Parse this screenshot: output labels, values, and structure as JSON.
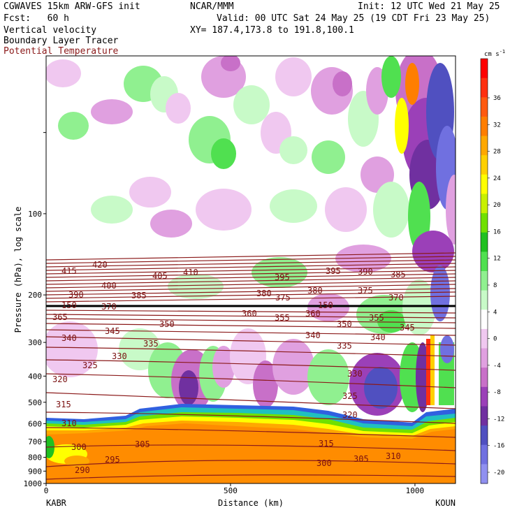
{
  "header": {
    "model": "CGWAVES 15km ARW-GFS init",
    "org": "NCAR/MMM",
    "init": "Init: 12 UTC Wed 21 May 25",
    "fcst": "Fcst:   60 h",
    "valid": "Valid: 00 UTC Sat 24 May 25 (19 CDT Fri 23 May 25)",
    "xy": "XY= 187.4,173.8 to 191.8,100.1",
    "fields": {
      "vv": "Vertical velocity",
      "blt": "Boundary Layer Tracer",
      "theta": "Potential Temperature"
    },
    "theta_color": "#8b1a1a"
  },
  "chart_data": {
    "type": "heatmap",
    "title": "Vertical velocity / Boundary Layer Tracer / Potential Temperature",
    "xlabel": "Distance (km)",
    "ylabel": "Pressure (hPa), log scale",
    "x_ticks": [
      "0",
      "500",
      "1000"
    ],
    "x_range": [
      0,
      1110
    ],
    "x_endpoints": {
      "left": "KABR",
      "right": "KOUN"
    },
    "y_ticks": [
      "100",
      "200",
      "300",
      "400",
      "500",
      "600",
      "700",
      "800",
      "900",
      "1000"
    ],
    "y_range": [
      1000,
      26
    ],
    "y_scale": "log",
    "colorbar": {
      "unit": "cm s",
      "unit_exp": "-1",
      "labels": [
        "36",
        "32",
        "28",
        "24",
        "20",
        "16",
        "12",
        "8",
        "4",
        "0",
        "-4",
        "-8",
        "-12",
        "-16",
        "-20"
      ],
      "colors": [
        "#ff0000",
        "#ff3010",
        "#ff5a10",
        "#ff7e00",
        "#ffa800",
        "#ffd000",
        "#ffff00",
        "#c8f000",
        "#70e000",
        "#20c020",
        "#50e050",
        "#90f090",
        "#c8fac8",
        "#ffffff",
        "#f0c8f0",
        "#e0a0e0",
        "#c870c8",
        "#9b40b8",
        "#7030a0",
        "#5050c0",
        "#7070e0",
        "#9090f0"
      ]
    },
    "theta_isentropes": {
      "units": "K",
      "interval": 5,
      "labels": [
        "290",
        "295",
        "300",
        "305",
        "310",
        "315",
        "320",
        "325",
        "330",
        "335",
        "340",
        "345",
        "350",
        "355",
        "360",
        "365",
        "370",
        "375",
        "380",
        "385",
        "390",
        "395",
        "400",
        "405",
        "410",
        "415",
        "420"
      ]
    },
    "tropopause_marker": "150"
  }
}
